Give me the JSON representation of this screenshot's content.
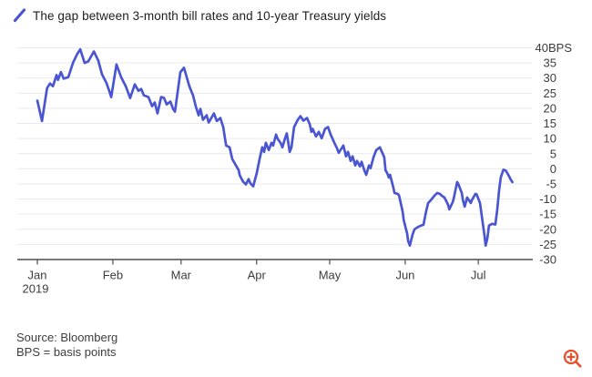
{
  "header": {
    "title": "The gap between 3-month bill rates and 10-year Treasury yields"
  },
  "footer": {
    "source": "Source: Bloomberg",
    "note": "BPS = basis points"
  },
  "icons": {
    "legend_line": {
      "name": "legend-line-icon",
      "color": "#4a55d2"
    },
    "zoom_in": {
      "name": "zoom-in-icon",
      "color": "#e8502a"
    }
  },
  "chart_data": {
    "type": "line",
    "title": "The gap between 3-month bill rates and 10-year Treasury yields",
    "xlabel": "",
    "ylabel": "",
    "unit": "BPS",
    "y_top_label": "40BPS",
    "ylim": [
      -30,
      40
    ],
    "y_ticks": [
      40,
      35,
      30,
      25,
      20,
      15,
      10,
      5,
      0,
      -5,
      -10,
      -15,
      -20,
      -25,
      -30
    ],
    "x_axis": "day_of_year_2019",
    "x_ticks": [
      {
        "label": "Jan",
        "sub": "2019",
        "day": 1
      },
      {
        "label": "Feb",
        "day": 32
      },
      {
        "label": "Mar",
        "day": 60
      },
      {
        "label": "Apr",
        "day": 91
      },
      {
        "label": "May",
        "day": 121
      },
      {
        "label": "Jun",
        "day": 152
      },
      {
        "label": "Jul",
        "day": 182
      }
    ],
    "grid": "horizontal",
    "legend_position": "top-left",
    "colors": {
      "line": "#4a55d2",
      "grid": "#eaeaea",
      "axis": "#4d4d4d",
      "text": "#3c3c3c"
    },
    "points": [
      [
        1,
        22.5
      ],
      [
        2.9,
        15.8
      ],
      [
        5,
        26.7
      ],
      [
        6.2,
        28.2
      ],
      [
        7.4,
        27.3
      ],
      [
        8.9,
        31
      ],
      [
        9.5,
        29.4
      ],
      [
        10.7,
        32
      ],
      [
        11.8,
        29.8
      ],
      [
        13.7,
        30.3
      ],
      [
        15.6,
        35
      ],
      [
        17.4,
        38
      ],
      [
        18.6,
        39.5
      ],
      [
        20.4,
        35
      ],
      [
        21.9,
        35.5
      ],
      [
        24.2,
        38.8
      ],
      [
        26,
        35.8
      ],
      [
        27.5,
        31.3
      ],
      [
        29.4,
        28.3
      ],
      [
        30.5,
        25.8
      ],
      [
        31.3,
        23.7
      ],
      [
        33.5,
        34.5
      ],
      [
        35.4,
        30.3
      ],
      [
        37.3,
        27.3
      ],
      [
        39.1,
        23.4
      ],
      [
        41,
        27.9
      ],
      [
        42.5,
        25.8
      ],
      [
        43.6,
        26.4
      ],
      [
        44.7,
        24.3
      ],
      [
        46.6,
        23.7
      ],
      [
        48.1,
        20.7
      ],
      [
        49.2,
        21.9
      ],
      [
        50.3,
        18.3
      ],
      [
        51.8,
        23.7
      ],
      [
        53,
        23.4
      ],
      [
        54.1,
        21.3
      ],
      [
        55.6,
        22.2
      ],
      [
        56.7,
        19.8
      ],
      [
        57.5,
        18.9
      ],
      [
        59.7,
        31.9
      ],
      [
        61.2,
        33.4
      ],
      [
        62.3,
        30.3
      ],
      [
        63.4,
        27.3
      ],
      [
        64.9,
        24.3
      ],
      [
        66,
        20.7
      ],
      [
        67.2,
        17.7
      ],
      [
        67.9,
        19.8
      ],
      [
        69,
        16.2
      ],
      [
        70.5,
        17.7
      ],
      [
        71.3,
        15.3
      ],
      [
        72.4,
        16.8
      ],
      [
        73.5,
        18.3
      ],
      [
        74.7,
        15.8
      ],
      [
        76.1,
        16.8
      ],
      [
        77.3,
        13.8
      ],
      [
        78,
        10.1
      ],
      [
        78.5,
        7.7
      ],
      [
        79.9,
        7.1
      ],
      [
        81,
        3.2
      ],
      [
        82.1,
        1.7
      ],
      [
        83.6,
        -0.4
      ],
      [
        84.1,
        -2.2
      ],
      [
        85.5,
        -4.3
      ],
      [
        86.6,
        -5.2
      ],
      [
        87.7,
        -3.4
      ],
      [
        88.5,
        -4.9
      ],
      [
        89.6,
        -5.8
      ],
      [
        91.1,
        -1.3
      ],
      [
        92.2,
        3.2
      ],
      [
        93.3,
        7.1
      ],
      [
        94.1,
        5.6
      ],
      [
        94.8,
        8.6
      ],
      [
        96,
        6.2
      ],
      [
        97.1,
        8.6
      ],
      [
        97.8,
        7.7
      ],
      [
        99,
        11.3
      ],
      [
        99.7,
        9.8
      ],
      [
        100.8,
        8.6
      ],
      [
        101.6,
        7.1
      ],
      [
        102.7,
        10.1
      ],
      [
        103.4,
        11.7
      ],
      [
        104.6,
        5.6
      ],
      [
        105.3,
        7.1
      ],
      [
        106.4,
        13.8
      ],
      [
        107.9,
        16.2
      ],
      [
        109,
        17.4
      ],
      [
        110.2,
        15.9
      ],
      [
        111.7,
        16.8
      ],
      [
        112.8,
        14.7
      ],
      [
        113.5,
        12.2
      ],
      [
        114,
        13.2
      ],
      [
        115.4,
        10.7
      ],
      [
        116.5,
        12.2
      ],
      [
        117.7,
        10.1
      ],
      [
        119.1,
        13.2
      ],
      [
        120.3,
        13.8
      ],
      [
        121.4,
        11.3
      ],
      [
        122.9,
        8.6
      ],
      [
        124,
        6.8
      ],
      [
        124.7,
        5.3
      ],
      [
        125.9,
        6.8
      ],
      [
        126.6,
        7.7
      ],
      [
        127.7,
        4.1
      ],
      [
        128.5,
        5.6
      ],
      [
        129.6,
        2.6
      ],
      [
        130.4,
        4.1
      ],
      [
        131.5,
        1.1
      ],
      [
        132.2,
        2.6
      ],
      [
        133.4,
        0.8
      ],
      [
        134.1,
        2.3
      ],
      [
        135.2,
        -0.5
      ],
      [
        136,
        -2
      ],
      [
        137.1,
        1.1
      ],
      [
        137.8,
        0.2
      ],
      [
        139,
        3.8
      ],
      [
        140.1,
        6.2
      ],
      [
        141.6,
        7.1
      ],
      [
        143.4,
        3.8
      ],
      [
        143.9,
        -0.5
      ],
      [
        144.6,
        -1.4
      ],
      [
        145.3,
        -2.9
      ],
      [
        145.8,
        -2
      ],
      [
        147.2,
        -6.5
      ],
      [
        147.6,
        -8
      ],
      [
        149,
        -8.3
      ],
      [
        149.5,
        -8.9
      ],
      [
        150.9,
        -14
      ],
      [
        151.4,
        -17
      ],
      [
        152.8,
        -21.5
      ],
      [
        153.2,
        -23.9
      ],
      [
        153.9,
        -25.4
      ],
      [
        155,
        -21.8
      ],
      [
        155.8,
        -20
      ],
      [
        156.9,
        -19.4
      ],
      [
        158.4,
        -18.8
      ],
      [
        159.5,
        -18.5
      ],
      [
        160.6,
        -14
      ],
      [
        161.4,
        -11.3
      ],
      [
        162.5,
        -10.4
      ],
      [
        164,
        -8.9
      ],
      [
        165.1,
        -8
      ],
      [
        166.2,
        -8.3
      ],
      [
        167,
        -8.9
      ],
      [
        168.1,
        -9.5
      ],
      [
        169.6,
        -11.9
      ],
      [
        170.1,
        -13.4
      ],
      [
        171.5,
        -11
      ],
      [
        171.9,
        -9.8
      ],
      [
        173.3,
        -4.4
      ],
      [
        173.8,
        -5
      ],
      [
        175.2,
        -8
      ],
      [
        175.7,
        -10.4
      ],
      [
        176.4,
        -12.5
      ],
      [
        177.4,
        -9.5
      ],
      [
        178.9,
        -11.3
      ],
      [
        179.3,
        -10.4
      ],
      [
        180.8,
        -8.3
      ],
      [
        181.3,
        -8.4
      ],
      [
        182.7,
        -11.3
      ],
      [
        183.2,
        -14.3
      ],
      [
        183.9,
        -18.5
      ],
      [
        184.6,
        -22.4
      ],
      [
        185,
        -25.4
      ],
      [
        185.7,
        -23
      ],
      [
        186.4,
        -18.8
      ],
      [
        187.6,
        -18.2
      ],
      [
        189,
        -18.4
      ],
      [
        189.8,
        -13.4
      ],
      [
        190.5,
        -7.4
      ],
      [
        191.2,
        -2.9
      ],
      [
        192.3,
        -0.3
      ],
      [
        193.3,
        -0.6
      ],
      [
        194.3,
        -2
      ],
      [
        195.3,
        -3.6
      ],
      [
        196,
        -4.4
      ]
    ]
  }
}
